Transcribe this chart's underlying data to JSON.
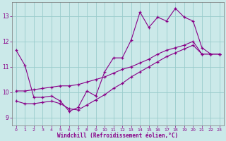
{
  "xlabel": "Windchill (Refroidissement éolien,°C)",
  "background_color": "#cbe9e9",
  "line_color": "#880088",
  "grid_color": "#99cccc",
  "ylim": [
    8.7,
    13.55
  ],
  "xlim": [
    -0.5,
    23.5
  ],
  "yticks": [
    9,
    10,
    11,
    12,
    13
  ],
  "xticks": [
    0,
    1,
    2,
    3,
    4,
    5,
    6,
    7,
    8,
    9,
    10,
    11,
    12,
    13,
    14,
    15,
    16,
    17,
    18,
    19,
    20,
    21,
    22,
    23
  ],
  "series1_x": [
    0,
    1,
    2,
    3,
    4,
    5,
    6,
    7,
    8,
    9,
    10,
    11,
    12,
    13,
    14,
    15,
    16,
    17,
    18,
    19,
    20,
    21,
    22,
    23
  ],
  "series1_y": [
    11.65,
    11.05,
    9.8,
    9.8,
    9.85,
    9.65,
    9.25,
    9.4,
    10.05,
    9.85,
    10.8,
    11.35,
    11.35,
    12.05,
    13.15,
    12.55,
    12.95,
    12.8,
    13.3,
    12.95,
    12.8,
    11.75,
    11.5,
    11.5
  ],
  "series2_x": [
    0,
    1,
    2,
    3,
    4,
    5,
    6,
    7,
    8,
    9,
    10,
    11,
    12,
    13,
    14,
    15,
    16,
    17,
    18,
    19,
    20,
    21,
    22,
    23
  ],
  "series2_y": [
    10.05,
    10.05,
    10.1,
    10.15,
    10.2,
    10.25,
    10.25,
    10.3,
    10.4,
    10.5,
    10.6,
    10.75,
    10.9,
    11.0,
    11.15,
    11.3,
    11.5,
    11.65,
    11.75,
    11.85,
    12.0,
    11.5,
    11.5,
    11.5
  ],
  "series3_x": [
    0,
    1,
    2,
    3,
    4,
    5,
    6,
    7,
    8,
    9,
    10,
    11,
    12,
    13,
    14,
    15,
    16,
    17,
    18,
    19,
    20,
    21,
    22,
    23
  ],
  "series3_y": [
    9.65,
    9.55,
    9.55,
    9.6,
    9.65,
    9.55,
    9.35,
    9.3,
    9.5,
    9.7,
    9.9,
    10.15,
    10.35,
    10.6,
    10.8,
    11.0,
    11.2,
    11.4,
    11.55,
    11.7,
    11.85,
    11.5,
    11.5,
    11.5
  ]
}
